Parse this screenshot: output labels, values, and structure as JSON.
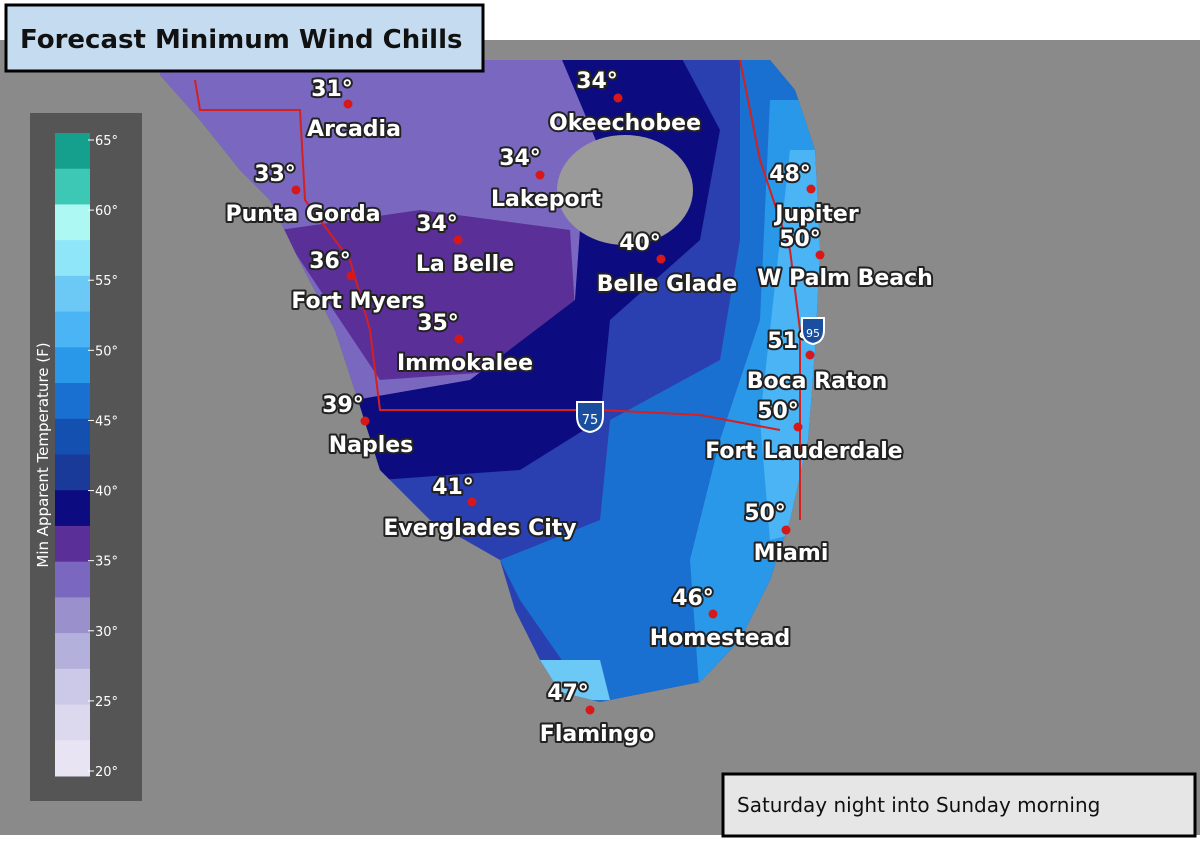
{
  "header": {
    "title": "Forecast Minimum Wind Chills"
  },
  "legend": {
    "title": "Min Apparent Temperature (F)",
    "ticks": [
      "65°",
      "60°",
      "55°",
      "50°",
      "45°",
      "40°",
      "35°",
      "30°",
      "25°",
      "20°"
    ]
  },
  "cities": [
    {
      "name": "Arcadia",
      "temp": "31°"
    },
    {
      "name": "Okeechobee",
      "temp": "34°"
    },
    {
      "name": "Lakeport",
      "temp": "34°"
    },
    {
      "name": "Punta Gorda",
      "temp": "33°"
    },
    {
      "name": "La Belle",
      "temp": "34°"
    },
    {
      "name": "Belle Glade",
      "temp": "40°"
    },
    {
      "name": "Fort Myers",
      "temp": "36°"
    },
    {
      "name": "Immokalee",
      "temp": "35°"
    },
    {
      "name": "Jupiter",
      "temp": "48°"
    },
    {
      "name": "W Palm Beach",
      "temp": "50°"
    },
    {
      "name": "Boca Raton",
      "temp": "51°"
    },
    {
      "name": "Fort Lauderdale",
      "temp": "50°"
    },
    {
      "name": "Naples",
      "temp": "39°"
    },
    {
      "name": "Everglades City",
      "temp": "41°"
    },
    {
      "name": "Miami",
      "temp": "50°"
    },
    {
      "name": "Homestead",
      "temp": "46°"
    },
    {
      "name": "Flamingo",
      "temp": "47°"
    }
  ],
  "highways": [
    "75",
    "95"
  ],
  "footer": {
    "period": "Saturday night into Sunday morning"
  }
}
